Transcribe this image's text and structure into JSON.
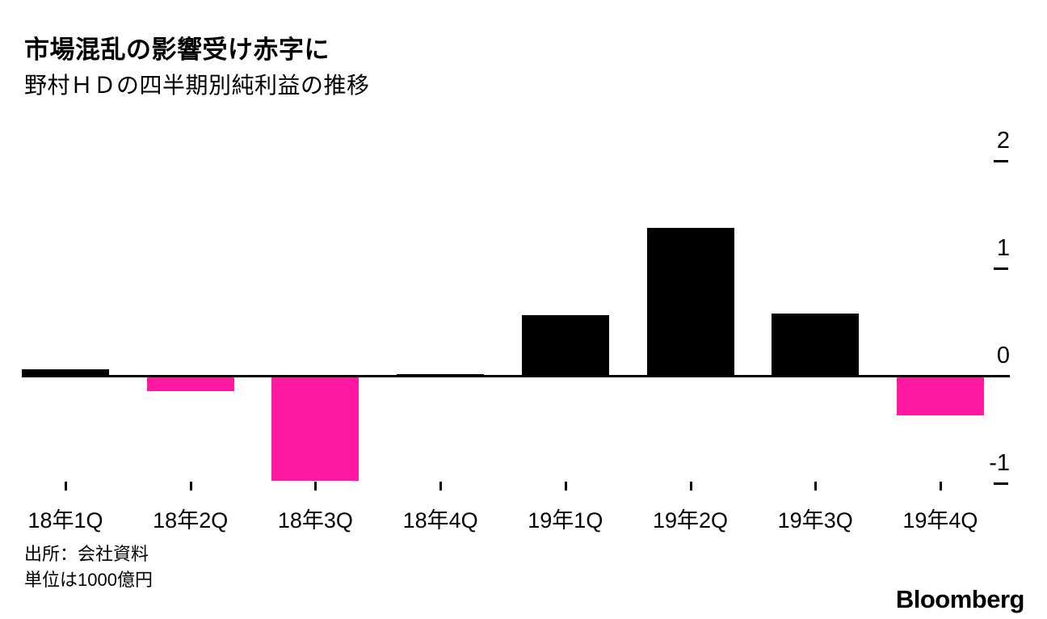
{
  "header": {
    "title": "市場混乱の影響受け赤字に",
    "subtitle": "野村ＨＤの四半期別純利益の推移"
  },
  "chart_data": {
    "type": "bar",
    "title": "市場混乱の影響受け赤字に",
    "subtitle": "野村ＨＤの四半期別純利益の推移",
    "categories": [
      "18年1Q",
      "18年2Q",
      "18年3Q",
      "18年4Q",
      "19年1Q",
      "19年2Q",
      "19年3Q",
      "19年4Q"
    ],
    "values": [
      0.05,
      -0.13,
      -0.96,
      0.01,
      0.56,
      1.37,
      0.57,
      -0.35
    ],
    "xlabel": "",
    "ylabel": "",
    "ylim": [
      -1.2,
      2.2
    ],
    "yticks": [
      2,
      1,
      0,
      -1
    ],
    "yaxis_position": "right",
    "grid": "off",
    "legend": "none",
    "positive_color": "#000000",
    "negative_color": "#ff18a1",
    "unit_note": "1000億円"
  },
  "footer": {
    "source": "出所：会社資料",
    "unit": "単位は1000億円",
    "logo": "Bloomberg"
  }
}
